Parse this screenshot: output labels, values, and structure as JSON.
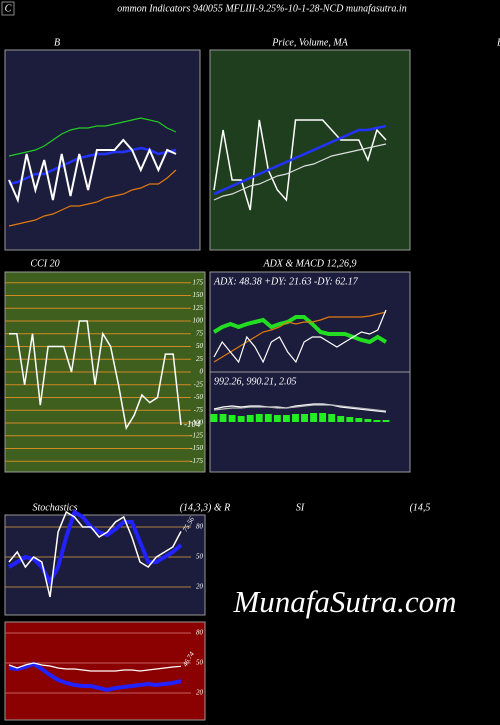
{
  "header": {
    "letter": "C",
    "title": "ommon  Indicators 940055 MFLIII-9.25%-10-1-28-NCD munafasutra.in",
    "right_fragment": "B"
  },
  "watermark": "MunafaSutra.com",
  "chart_data": [
    {
      "type": "line",
      "title": "B",
      "background": "#1c1c3c",
      "ylim": [
        0,
        100
      ],
      "series": [
        {
          "color": "#22cc22",
          "values": [
            47,
            48,
            49,
            50,
            52,
            55,
            58,
            60,
            61,
            61,
            62,
            62,
            63,
            64,
            65,
            66,
            65,
            64,
            61,
            59
          ]
        },
        {
          "color": "#2233ff",
          "values": [
            33,
            34,
            36,
            38,
            38,
            40,
            42,
            44,
            46,
            47,
            48,
            48,
            49,
            49,
            50,
            51,
            50,
            48,
            49,
            50
          ]
        },
        {
          "color": "#ffffff",
          "values": [
            35,
            25,
            48,
            30,
            45,
            25,
            48,
            27,
            48,
            30,
            50,
            50,
            50,
            55,
            50,
            40,
            50,
            40,
            50,
            48
          ]
        },
        {
          "color": "#e07a10",
          "values": [
            12,
            13,
            14,
            15,
            17,
            18,
            20,
            22,
            22,
            23,
            24,
            26,
            27,
            28,
            30,
            31,
            33,
            33,
            36,
            40
          ]
        }
      ]
    },
    {
      "type": "line",
      "title": "Price, Volume, MA",
      "background": "#1e3e1e",
      "ylim": [
        0,
        100
      ],
      "series": [
        {
          "color": "#ffffff",
          "values": [
            30,
            60,
            35,
            35,
            20,
            65,
            40,
            30,
            25,
            65,
            65,
            65,
            65,
            60,
            55,
            55,
            55,
            45,
            60,
            55
          ]
        },
        {
          "color": "#2233ff",
          "values": [
            28,
            30,
            32,
            34,
            36,
            38,
            40,
            42,
            44,
            46,
            48,
            50,
            52,
            54,
            56,
            58,
            60,
            60,
            61,
            62
          ]
        },
        {
          "color": "#dddddd",
          "values": [
            25,
            27,
            28,
            30,
            32,
            33,
            35,
            37,
            38,
            40,
            42,
            43,
            45,
            47,
            48,
            49,
            50,
            51,
            52,
            53
          ]
        }
      ]
    },
    {
      "type": "line",
      "title": "CCI 20",
      "background": "#3f5f1f",
      "grid": true,
      "grid_color": "#d08a20",
      "ylim": [
        -196,
        196
      ],
      "yticks": [
        175,
        150,
        125,
        100,
        75,
        50,
        25,
        0,
        -25,
        -50,
        -75,
        -100,
        -125,
        -150,
        -175
      ],
      "series": [
        {
          "color": "#ffffff",
          "values": [
            75,
            75,
            -25,
            75,
            -65,
            50,
            50,
            50,
            0,
            100,
            100,
            -25,
            75,
            50,
            -25,
            -110,
            -85,
            -45,
            -60,
            -50,
            35,
            35,
            -104
          ]
        }
      ]
    },
    {
      "type": "line",
      "title": "ADX  & MACD 12,26,9",
      "subtitle": "ADX: 48.38  +DY: 21.63 -DY: 62.17",
      "background": "#1c1c3c",
      "ylim": [
        0,
        100
      ],
      "series": [
        {
          "color": "#22dd22",
          "values": [
            40,
            45,
            48,
            45,
            48,
            50,
            52,
            45,
            48,
            50,
            55,
            55,
            48,
            40,
            38,
            38,
            38,
            35,
            32,
            30,
            35,
            30
          ]
        },
        {
          "color": "#e07a10",
          "values": [
            10,
            15,
            20,
            25,
            30,
            35,
            40,
            42,
            45,
            50,
            48,
            50,
            50,
            52,
            55,
            55,
            55,
            55,
            55,
            56,
            58,
            60
          ]
        },
        {
          "color": "#ffffff",
          "values": [
            15,
            30,
            20,
            10,
            35,
            25,
            10,
            30,
            35,
            20,
            10,
            30,
            35,
            35,
            30,
            25,
            30,
            35,
            40,
            38,
            42,
            62
          ]
        }
      ]
    },
    {
      "type": "line",
      "subtitle": "992.26, 990.21, 2.05",
      "background": "#1c1c3c",
      "ylim": [
        -50,
        50
      ],
      "histogram": {
        "color": "#22ee22",
        "values": [
          8,
          8,
          7,
          6,
          7,
          8,
          8,
          7,
          7,
          8,
          8,
          9,
          9,
          8,
          6,
          5,
          4,
          3,
          2,
          2
        ]
      },
      "series": [
        {
          "color": "#ffffff",
          "values": [
            13,
            15,
            16,
            15,
            16,
            16,
            15,
            15,
            14,
            16,
            17,
            18,
            18,
            17,
            15,
            14,
            13,
            12,
            11,
            10
          ]
        },
        {
          "color": "#bbbbbb",
          "values": [
            12,
            13,
            14,
            14,
            15,
            15,
            15,
            14,
            14,
            15,
            16,
            17,
            17,
            17,
            16,
            15,
            14,
            13,
            12,
            11
          ]
        }
      ]
    },
    {
      "type": "line",
      "title": "Stochastics",
      "title_right": "(14,3,3) & R",
      "background": "#1c1c3c",
      "grid": true,
      "grid_color": "#b08040",
      "ylim": [
        -8,
        92
      ],
      "yticks": [
        80,
        50,
        20
      ],
      "series": [
        {
          "color": "#2222ff",
          "values": [
            40,
            45,
            50,
            48,
            40,
            25,
            40,
            70,
            95,
            90,
            80,
            75,
            72,
            78,
            85,
            85,
            65,
            45,
            45,
            50,
            55,
            62
          ]
        },
        {
          "color": "#ffffff",
          "values": [
            45,
            55,
            40,
            50,
            45,
            10,
            75,
            95,
            90,
            80,
            80,
            70,
            75,
            85,
            90,
            70,
            45,
            40,
            50,
            55,
            60,
            75.56
          ]
        }
      ]
    },
    {
      "type": "line",
      "title": "SI",
      "title_right": "(14,5",
      "background": "#8b0000",
      "grid": true,
      "grid_color": "#c06060",
      "ylim": [
        -7,
        91
      ],
      "yticks": [
        80,
        50,
        20
      ],
      "series": [
        {
          "color": "#2222ff",
          "values": [
            45,
            44,
            46,
            49,
            44,
            38,
            33,
            30,
            28,
            27,
            27,
            25,
            23,
            25,
            26,
            27,
            28,
            29,
            28,
            29,
            30,
            32
          ]
        },
        {
          "color": "#ffffff",
          "values": [
            48,
            45,
            48,
            50,
            48,
            47,
            45,
            44,
            44,
            43,
            42,
            42,
            42,
            42,
            43,
            43,
            42,
            43,
            44,
            45,
            46,
            46.74
          ]
        }
      ]
    }
  ]
}
